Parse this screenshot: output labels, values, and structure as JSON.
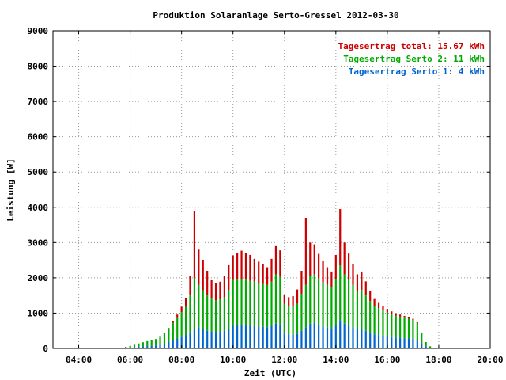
{
  "chart_data": {
    "type": "bar",
    "title": "Produktion Solaranlage Serto-Gressel 2012-03-30",
    "xlabel": "Zeit (UTC)",
    "ylabel": "Leistung [W]",
    "ylim": [
      0,
      9000
    ],
    "xlim": [
      "03:00",
      "20:00"
    ],
    "grid": true,
    "stacked": true,
    "yticks": [
      "0",
      "1000",
      "2000",
      "3000",
      "4000",
      "5000",
      "6000",
      "7000",
      "8000",
      "9000"
    ],
    "xticks": [
      "04:00",
      "06:00",
      "08:00",
      "10:00",
      "12:00",
      "14:00",
      "16:00",
      "18:00",
      "20:00"
    ],
    "legend_position": "top-right",
    "legend": [
      {
        "text": "Tagesertrag total: 15.67 kWh",
        "color": "#cc0000"
      },
      {
        "text": "Tagesertrag Serto 2: 11 kWh",
        "color": "#00aa00"
      },
      {
        "text": "Tagesertrag Serto 1: 4 kWh",
        "color": "#0066cc"
      }
    ],
    "x": [
      "05:50",
      "06:00",
      "06:10",
      "06:20",
      "06:30",
      "06:40",
      "06:50",
      "07:00",
      "07:10",
      "07:20",
      "07:30",
      "07:40",
      "07:50",
      "08:00",
      "08:10",
      "08:20",
      "08:30",
      "08:40",
      "08:50",
      "09:00",
      "09:10",
      "09:20",
      "09:30",
      "09:40",
      "09:50",
      "10:00",
      "10:10",
      "10:20",
      "10:30",
      "10:40",
      "10:50",
      "11:00",
      "11:10",
      "11:20",
      "11:30",
      "11:40",
      "11:50",
      "12:00",
      "12:10",
      "12:20",
      "12:30",
      "12:40",
      "12:50",
      "13:00",
      "13:10",
      "13:20",
      "13:30",
      "13:40",
      "13:50",
      "14:00",
      "14:10",
      "14:20",
      "14:30",
      "14:40",
      "14:50",
      "15:00",
      "15:10",
      "15:20",
      "15:30",
      "15:40",
      "15:50",
      "16:00",
      "16:10",
      "16:20",
      "16:30",
      "16:40",
      "16:50",
      "17:00",
      "17:10",
      "17:20",
      "17:30",
      "17:40"
    ],
    "series": [
      {
        "name": "Serto 1",
        "color": "#0066cc",
        "values": [
          15,
          25,
          35,
          45,
          55,
          65,
          75,
          85,
          100,
          130,
          180,
          230,
          280,
          330,
          380,
          450,
          550,
          600,
          550,
          500,
          480,
          460,
          470,
          500,
          560,
          640,
          650,
          660,
          650,
          640,
          630,
          620,
          610,
          600,
          640,
          700,
          680,
          420,
          400,
          390,
          420,
          500,
          600,
          700,
          720,
          680,
          620,
          600,
          580,
          650,
          800,
          700,
          640,
          600,
          540,
          560,
          500,
          440,
          400,
          380,
          360,
          340,
          320,
          310,
          300,
          290,
          280,
          270,
          240,
          150,
          60,
          20
        ]
      },
      {
        "name": "Serto 2",
        "color": "#00aa00",
        "values": [
          30,
          45,
          70,
          95,
          120,
          140,
          160,
          180,
          230,
          300,
          400,
          500,
          580,
          700,
          800,
          1050,
          1450,
          1200,
          1100,
          1000,
          930,
          900,
          920,
          950,
          1100,
          1300,
          1300,
          1310,
          1300,
          1280,
          1260,
          1240,
          1220,
          1200,
          1250,
          1400,
          1350,
          850,
          800,
          790,
          850,
          1050,
          1200,
          1350,
          1380,
          1300,
          1250,
          1200,
          1150,
          1300,
          1550,
          1400,
          1300,
          1200,
          1080,
          1100,
          1000,
          900,
          800,
          760,
          720,
          680,
          650,
          620,
          600,
          580,
          560,
          540,
          480,
          300,
          120,
          40
        ]
      },
      {
        "name": "total",
        "color": "#cc0000",
        "values": [
          0,
          0,
          0,
          0,
          0,
          0,
          0,
          0,
          0,
          0,
          0,
          50,
          100,
          150,
          250,
          550,
          1900,
          1000,
          850,
          700,
          520,
          490,
          500,
          600,
          700,
          700,
          750,
          800,
          750,
          730,
          650,
          600,
          550,
          500,
          650,
          800,
          750,
          250,
          250,
          300,
          400,
          650,
          1900,
          950,
          850,
          700,
          600,
          500,
          450,
          700,
          1600,
          900,
          750,
          600,
          480,
          520,
          400,
          300,
          200,
          150,
          130,
          100,
          80,
          70,
          60,
          50,
          40,
          30,
          20,
          0,
          0,
          0
        ]
      }
    ]
  }
}
